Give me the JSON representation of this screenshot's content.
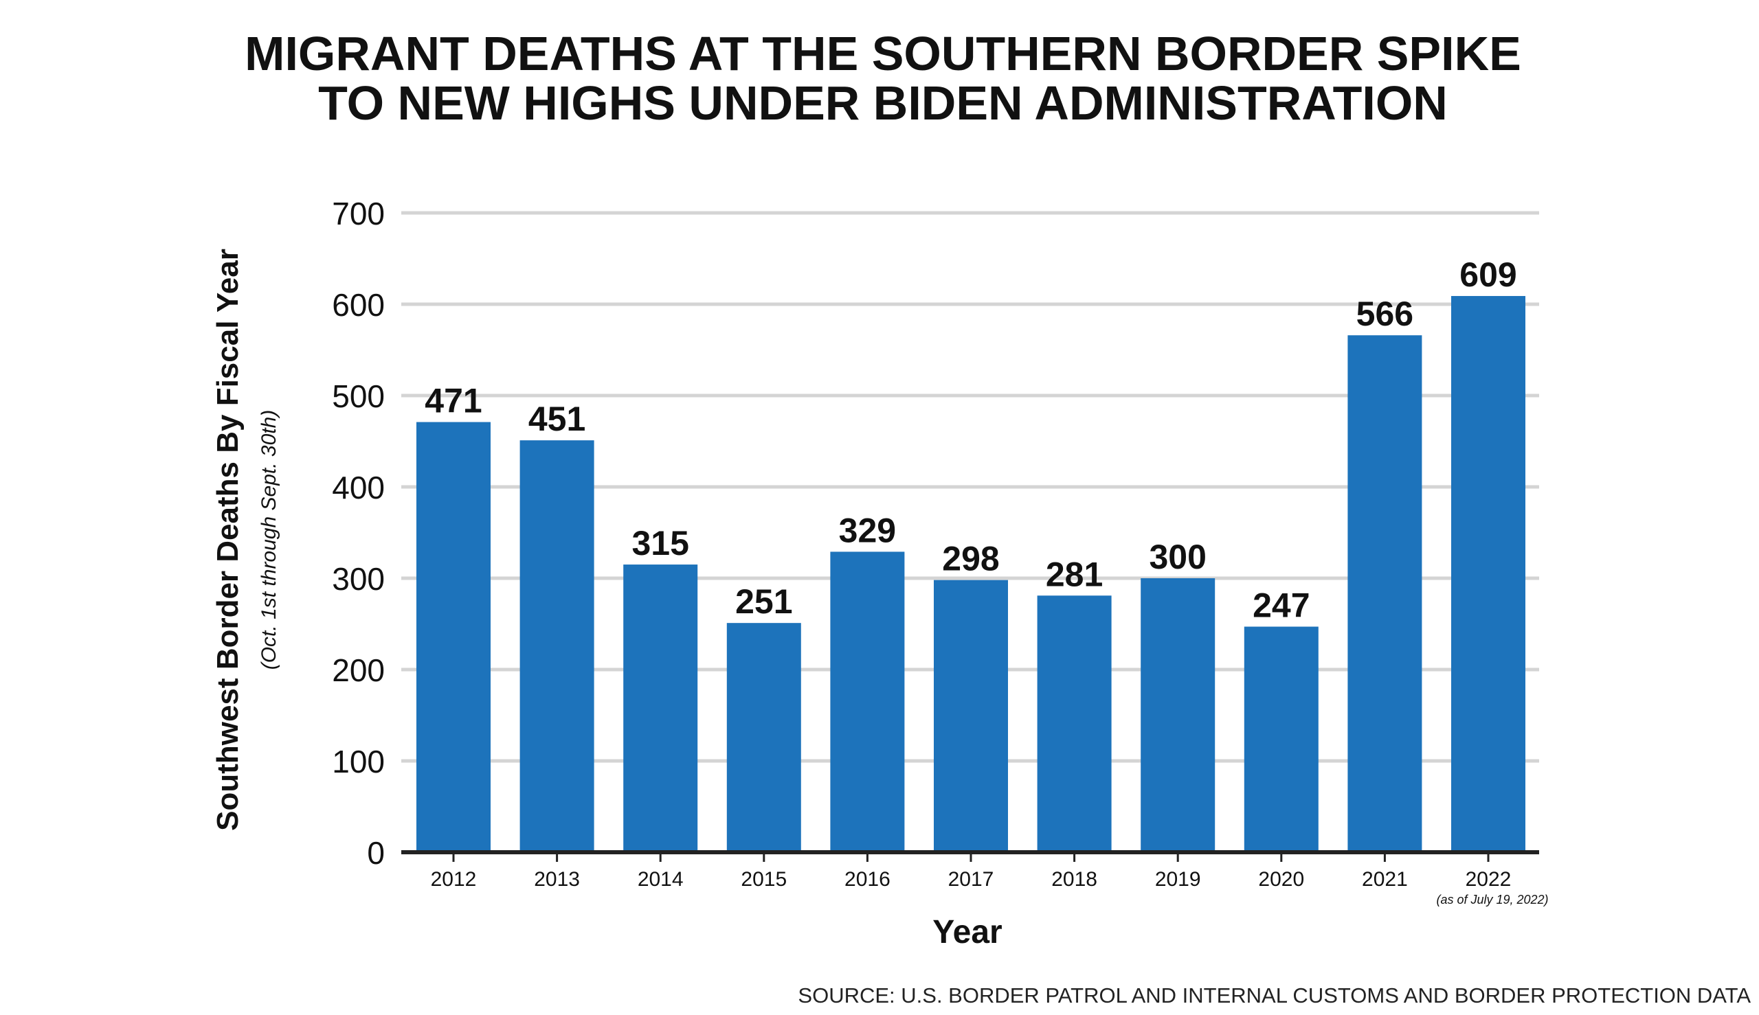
{
  "chart_data": {
    "type": "bar",
    "title": "MIGRANT DEATHS AT THE SOUTHERN BORDER SPIKE TO NEW HIGHS UNDER BIDEN ADMINISTRATION",
    "title_lines": [
      "MIGRANT DEATHS AT THE SOUTHERN BORDER SPIKE",
      "TO NEW HIGHS UNDER BIDEN ADMINISTRATION"
    ],
    "xlabel": "Year",
    "ylabel": "Southwest Border Deaths By Fiscal Year",
    "ylabel_sub": "(Oct. 1st through Sept. 30th)",
    "categories": [
      "2012",
      "2013",
      "2014",
      "2015",
      "2016",
      "2017",
      "2018",
      "2019",
      "2020",
      "2021",
      "2022"
    ],
    "category_notes": {
      "2022": "(as of July 19, 2022)"
    },
    "values": [
      471,
      451,
      315,
      251,
      329,
      298,
      281,
      300,
      247,
      566,
      609
    ],
    "ylim": [
      0,
      700
    ],
    "yticks": [
      0,
      100,
      200,
      300,
      400,
      500,
      600,
      700
    ],
    "grid": true,
    "data_labels": true,
    "colors": {
      "bar": "#1d73bb",
      "grid": "#d4d4d4",
      "axis": "#222222"
    },
    "source": "SOURCE: U.S. BORDER PATROL AND INTERNAL CUSTOMS AND BORDER PROTECTION DATA"
  }
}
